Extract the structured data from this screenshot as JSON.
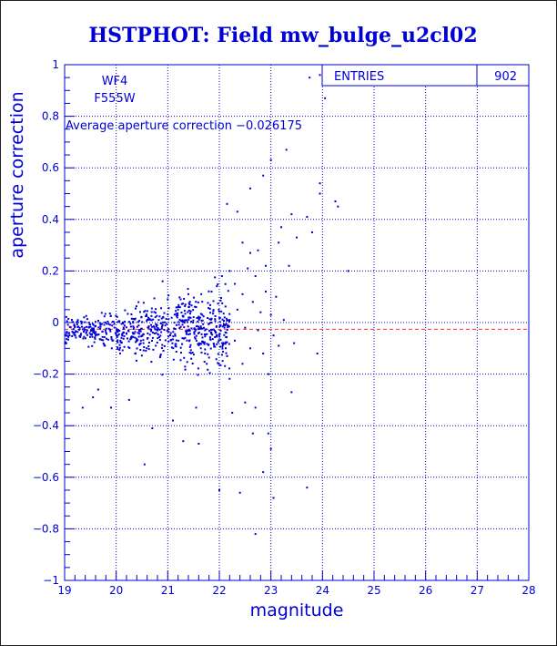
{
  "page": {
    "colors": {
      "ink": "#0000d6",
      "points": "#0000d6",
      "average_line": "#ff2a2a",
      "background": "#ffffff"
    }
  },
  "chart_data": {
    "type": "scatter",
    "title": "HSTPHOT: Field mw_bulge_u2cl02",
    "xlabel": "magnitude",
    "ylabel": "aperture correction",
    "xlim": [
      19,
      28
    ],
    "ylim": [
      -1,
      1
    ],
    "grid": true,
    "x_ticks": [
      "19",
      "20",
      "21",
      "22",
      "23",
      "24",
      "25",
      "26",
      "27",
      "28"
    ],
    "y_ticks": [
      "−1",
      "−0.8",
      "−0.6",
      "−0.4",
      "−0.2",
      "0",
      "0.2",
      "0.4",
      "0.6",
      "0.8",
      "1"
    ],
    "annotations": {
      "chip": "WF4",
      "filter": "F555W",
      "average_text": "Average aperture correction −0.026175"
    },
    "stats": {
      "entries_label": "ENTRIES",
      "entries_value": "902"
    },
    "average_line_y": -0.026175,
    "points": [
      [
        23.75,
        0.95
      ],
      [
        23.95,
        0.96
      ],
      [
        24.05,
        0.87
      ],
      [
        23.3,
        0.67
      ],
      [
        23.0,
        0.63
      ],
      [
        23.95,
        0.54
      ],
      [
        23.95,
        0.5
      ],
      [
        24.25,
        0.47
      ],
      [
        24.3,
        0.45
      ],
      [
        22.15,
        0.46
      ],
      [
        22.35,
        0.43
      ],
      [
        22.6,
        0.52
      ],
      [
        22.85,
        0.57
      ],
      [
        23.2,
        0.37
      ],
      [
        23.4,
        0.42
      ],
      [
        23.7,
        0.41
      ],
      [
        23.8,
        0.35
      ],
      [
        23.5,
        0.33
      ],
      [
        24.5,
        0.2
      ],
      [
        22.45,
        0.31
      ],
      [
        22.6,
        0.27
      ],
      [
        22.75,
        0.28
      ],
      [
        23.15,
        0.31
      ],
      [
        23.35,
        0.22
      ],
      [
        22.9,
        0.22
      ],
      [
        22.2,
        0.2
      ],
      [
        22.05,
        0.18
      ],
      [
        22.3,
        0.15
      ],
      [
        22.55,
        0.21
      ],
      [
        22.7,
        0.18
      ],
      [
        22.9,
        0.12
      ],
      [
        23.1,
        0.1
      ],
      [
        22.45,
        0.11
      ],
      [
        22.65,
        0.08
      ],
      [
        22.35,
        0.05
      ],
      [
        22.8,
        0.04
      ],
      [
        23.0,
        0.03
      ],
      [
        22.2,
        0.01
      ],
      [
        22.5,
        -0.02
      ],
      [
        22.75,
        -0.03
      ],
      [
        23.05,
        -0.05
      ],
      [
        22.3,
        -0.07
      ],
      [
        22.6,
        -0.1
      ],
      [
        22.85,
        -0.12
      ],
      [
        23.15,
        -0.09
      ],
      [
        22.15,
        -0.13
      ],
      [
        22.45,
        -0.16
      ],
      [
        22.95,
        -0.2
      ],
      [
        23.4,
        -0.27
      ],
      [
        22.5,
        -0.31
      ],
      [
        22.7,
        -0.33
      ],
      [
        22.95,
        -0.43
      ],
      [
        22.25,
        -0.35
      ],
      [
        22.65,
        -0.43
      ],
      [
        23.0,
        -0.49
      ],
      [
        22.85,
        -0.58
      ],
      [
        22.0,
        -0.65
      ],
      [
        22.4,
        -0.66
      ],
      [
        23.05,
        -0.68
      ],
      [
        23.7,
        -0.64
      ],
      [
        22.7,
        -0.82
      ],
      [
        23.9,
        -0.12
      ],
      [
        23.45,
        -0.08
      ],
      [
        23.25,
        0.01
      ],
      [
        21.6,
        -0.47
      ],
      [
        21.1,
        -0.38
      ],
      [
        20.7,
        -0.41
      ],
      [
        20.55,
        -0.55
      ],
      [
        19.9,
        -0.33
      ],
      [
        19.55,
        -0.29
      ],
      [
        19.35,
        -0.33
      ],
      [
        19.65,
        -0.26
      ],
      [
        21.55,
        -0.33
      ],
      [
        21.3,
        -0.46
      ],
      [
        20.25,
        -0.3
      ],
      [
        21.65,
        0.11
      ],
      [
        21.85,
        0.12
      ],
      [
        21.4,
        0.11
      ],
      [
        21.55,
        0.06
      ],
      [
        21.25,
        0.09
      ],
      [
        21.0,
        0.09
      ],
      [
        20.9,
        0.16
      ],
      [
        21.2,
        0.06
      ]
    ]
  }
}
